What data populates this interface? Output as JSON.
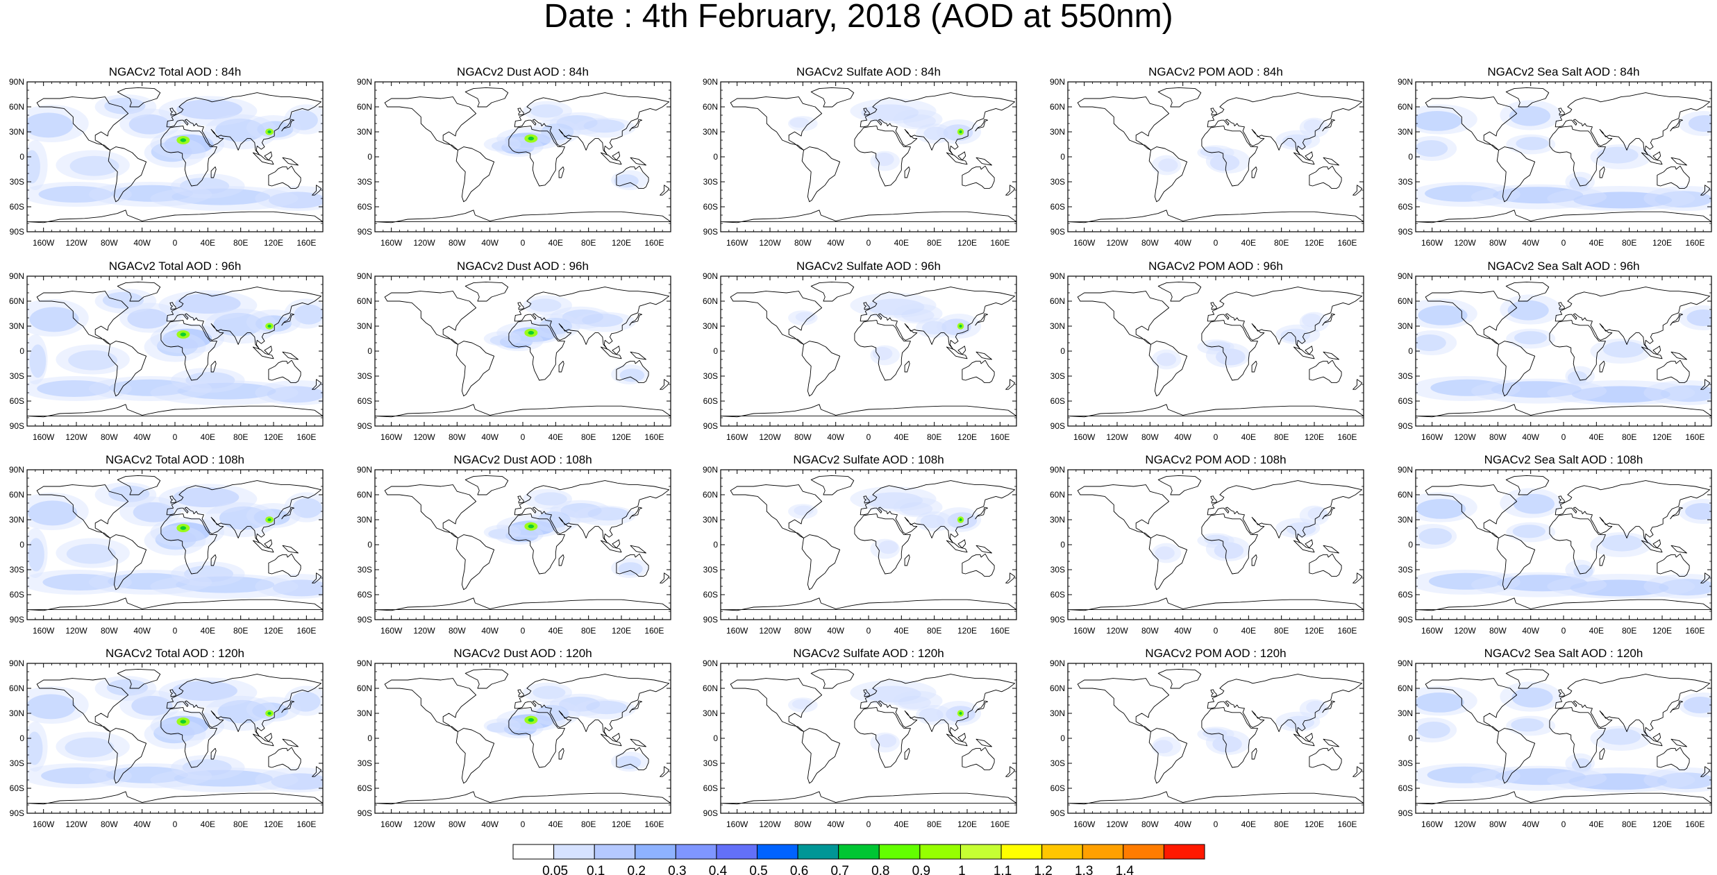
{
  "title": "Date : 4th February, 2018 (AOD at 550nm)",
  "panel_titles": [
    [
      "NGACv2 Total AOD : 84h",
      "NGACv2 Dust AOD : 84h",
      "NGACv2 Sulfate AOD : 84h",
      "NGACv2 POM AOD : 84h",
      "NGACv2 Sea Salt AOD : 84h"
    ],
    [
      "NGACv2 Total AOD : 96h",
      "NGACv2 Dust AOD : 96h",
      "NGACv2 Sulfate AOD : 96h",
      "NGACv2 POM AOD : 96h",
      "NGACv2 Sea Salt AOD : 96h"
    ],
    [
      "NGACv2 Total AOD : 108h",
      "NGACv2 Dust AOD : 108h",
      "NGACv2 Sulfate AOD : 108h",
      "NGACv2 POM AOD : 108h",
      "NGACv2 Sea Salt AOD : 108h"
    ],
    [
      "NGACv2 Total AOD : 120h",
      "NGACv2 Dust AOD : 120h",
      "NGACv2 Sulfate AOD : 120h",
      "NGACv2 POM AOD : 120h",
      "NGACv2 Sea Salt  AOD : 120h"
    ]
  ],
  "lat_labels": [
    "90N",
    "60N",
    "30N",
    "0",
    "30S",
    "60S",
    "90S"
  ],
  "lon_labels": [
    "160W",
    "120W",
    "80W",
    "40W",
    "0",
    "40E",
    "80E",
    "120E",
    "160E"
  ],
  "lon_values": [
    -160,
    -120,
    -80,
    -40,
    0,
    40,
    80,
    120,
    160
  ],
  "lat_values": [
    90,
    60,
    30,
    0,
    -30,
    -60,
    -90
  ],
  "colorbar": {
    "labels": [
      "0.05",
      "0.1",
      "0.2",
      "0.3",
      "0.4",
      "0.5",
      "0.6",
      "0.7",
      "0.8",
      "0.9",
      "1",
      "1.1",
      "1.2",
      "1.3",
      "1.4"
    ],
    "colors": [
      "#ffffff",
      "#d6e2ff",
      "#b5c9ff",
      "#8eb2ff",
      "#7f96ff",
      "#6370f8",
      "#0063ff",
      "#009696",
      "#00c633",
      "#63ff00",
      "#96ff00",
      "#c6ff33",
      "#ffff00",
      "#ffc600",
      "#ffa000",
      "#ff7c00",
      "#ff1900"
    ]
  },
  "species_colors": {
    "total": "#8eb2ff",
    "dust": "#8eb2ff",
    "sulfate": "#b5c9ff",
    "pom": "#b5c9ff",
    "seasalt": "#8eb2ff",
    "hotspot": "#96ff00",
    "hotspot_core": "#00c633"
  }
}
